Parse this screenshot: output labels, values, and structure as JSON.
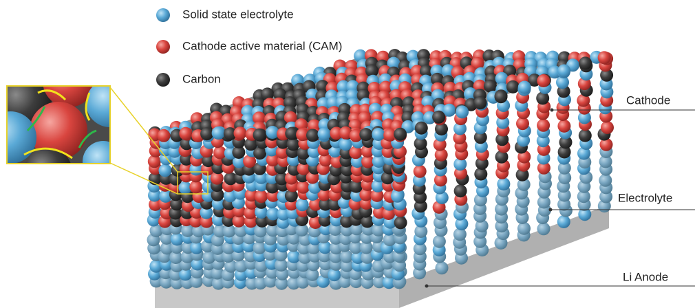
{
  "legend": {
    "items": [
      {
        "label": "Solid state electrolyte"
      },
      {
        "label": "Cathode active material (CAM)"
      },
      {
        "label": "Carbon"
      }
    ]
  },
  "layers": [
    {
      "label": "Cathode"
    },
    {
      "label": "Electrolyte"
    },
    {
      "label": "Li Anode"
    }
  ]
}
